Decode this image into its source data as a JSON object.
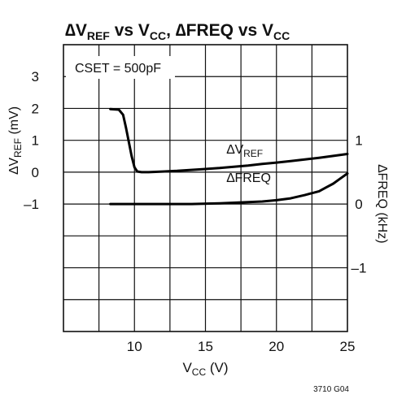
{
  "chart_data": {
    "type": "line",
    "title": {
      "prefix": "∆V",
      "sub1": "REF",
      "mid": " vs V",
      "sub2": "CC",
      "sep": ", ∆FREQ vs V",
      "sub3": "CC"
    },
    "annotation": "CSET = 500pF",
    "figure_id": "3710 G04",
    "xlabel": {
      "main": "V",
      "sub": "CC",
      "rest": " (V)"
    },
    "xlim": [
      5,
      25
    ],
    "x_ticks": [
      10,
      15,
      20,
      25
    ],
    "y_left": {
      "label": {
        "pre": "∆V",
        "sub": "REF",
        "post": " (mV)"
      },
      "ylim": [
        -5,
        4
      ],
      "ticks": [
        3,
        2,
        1,
        0,
        -1
      ],
      "tick_labels": [
        "3",
        "2",
        "1",
        "0",
        "–1"
      ]
    },
    "y_right": {
      "label": "∆FREQ (kHz)",
      "ylim": [
        -2,
        2.5
      ],
      "ticks": [
        1,
        0,
        -1
      ],
      "tick_labels": [
        "1",
        "0",
        "–1"
      ]
    },
    "series": [
      {
        "name": {
          "main": "∆V",
          "sub": "REF"
        },
        "axis": "left",
        "x": [
          8.3,
          8.9,
          9.2,
          9.4,
          9.6,
          9.8,
          10.0,
          10.2,
          10.5,
          11,
          12,
          13,
          14,
          15,
          16,
          17,
          18,
          19,
          20,
          21,
          22,
          23,
          24,
          25
        ],
        "y": [
          1.98,
          1.96,
          1.8,
          1.4,
          0.95,
          0.5,
          0.15,
          0.02,
          0.0,
          0.0,
          0.02,
          0.04,
          0.07,
          0.1,
          0.13,
          0.17,
          0.21,
          0.26,
          0.3,
          0.35,
          0.4,
          0.45,
          0.51,
          0.57
        ]
      },
      {
        "name": "∆FREQ",
        "axis": "right",
        "x": [
          8.3,
          10,
          12,
          14,
          16,
          18,
          19,
          20,
          21,
          22,
          23,
          23.5,
          24,
          24.5,
          25
        ],
        "y": [
          0.0,
          0.0,
          0.0,
          0.0,
          0.01,
          0.03,
          0.04,
          0.06,
          0.09,
          0.14,
          0.2,
          0.26,
          0.32,
          0.4,
          0.48
        ]
      }
    ],
    "grid": true
  }
}
